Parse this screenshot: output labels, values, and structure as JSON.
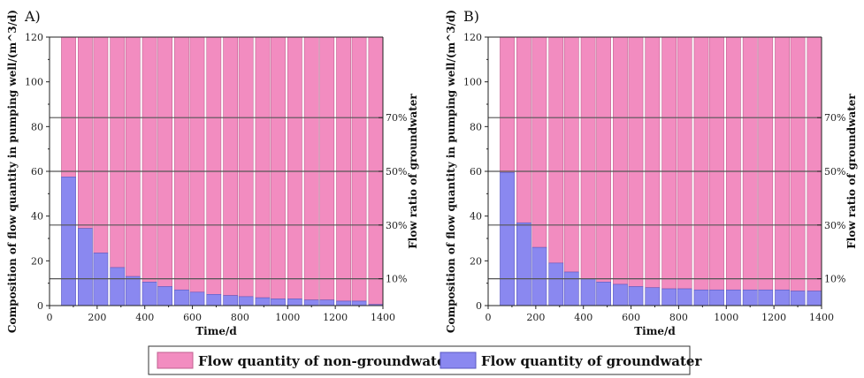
{
  "legend": {
    "items": [
      {
        "label": "Flow quantity of non-groundwater",
        "color": "#f28cc0"
      },
      {
        "label": "Flow quantity of groundwater",
        "color": "#8a88f0"
      }
    ]
  },
  "colors": {
    "non_groundwater": "#f28cc0",
    "groundwater": "#8a88f0",
    "ratio_line": "#555555"
  },
  "chart_data": [
    {
      "type": "bar",
      "stacked": true,
      "panel_label": "A)",
      "xlabel": "Time/d",
      "ylabel": "Composition of flow quantity in pumping well/(m^3/d)",
      "y2label": "Flow ratio of groundwater",
      "xlim": [
        0,
        1400
      ],
      "ylim": [
        0,
        120
      ],
      "xticks": [
        "0",
        "200",
        "400",
        "600",
        "800",
        "1000",
        "1200",
        "1400"
      ],
      "yticks": [
        "0",
        "20",
        "40",
        "60",
        "80",
        "100",
        "120"
      ],
      "ratio_lines": [
        {
          "label": "10%",
          "value": 12
        },
        {
          "label": "30%",
          "value": 36
        },
        {
          "label": "50%",
          "value": 60
        },
        {
          "label": "70%",
          "value": 84
        }
      ],
      "bar_width": 60,
      "x": [
        80,
        150,
        215,
        285,
        350,
        420,
        485,
        555,
        620,
        690,
        760,
        825,
        895,
        960,
        1030,
        1100,
        1165,
        1235,
        1300,
        1370
      ],
      "series": [
        {
          "name": "Flow quantity of groundwater",
          "values": [
            57.5,
            34.5,
            23.5,
            17,
            13,
            10.5,
            8.5,
            7,
            6,
            5,
            4.5,
            4,
            3.5,
            3,
            3,
            2.5,
            2.5,
            2,
            2,
            0.5
          ]
        },
        {
          "name": "Flow quantity of non-groundwater",
          "values": [
            62.5,
            85.5,
            96.5,
            103,
            107,
            109.5,
            111.5,
            113,
            114,
            115,
            115.5,
            116,
            116.5,
            117,
            117,
            117.5,
            117.5,
            118,
            118,
            119.5
          ]
        }
      ]
    },
    {
      "type": "bar",
      "stacked": true,
      "panel_label": "B)",
      "xlabel": "Time/d",
      "ylabel": "Composition of flow quantity in pumping well/(m^3/d)",
      "y2label": "Flow ratio of groundwater",
      "xlim": [
        0,
        1400
      ],
      "ylim": [
        0,
        120
      ],
      "xticks": [
        "0",
        "200",
        "400",
        "600",
        "800",
        "1000",
        "1200",
        "1400"
      ],
      "yticks": [
        "0",
        "20",
        "40",
        "60",
        "80",
        "100",
        "120"
      ],
      "ratio_lines": [
        {
          "label": "10%",
          "value": 12
        },
        {
          "label": "30%",
          "value": 36
        },
        {
          "label": "50%",
          "value": 60
        },
        {
          "label": "70%",
          "value": 84
        }
      ],
      "bar_width": 60,
      "x": [
        80,
        150,
        215,
        285,
        350,
        420,
        485,
        555,
        620,
        690,
        760,
        825,
        895,
        960,
        1030,
        1100,
        1165,
        1235,
        1300,
        1370
      ],
      "series": [
        {
          "name": "Flow quantity of groundwater",
          "values": [
            59.5,
            37,
            26,
            19,
            15,
            12,
            10.5,
            9.5,
            8.5,
            8,
            7.5,
            7.5,
            7,
            7,
            7,
            7,
            7,
            7,
            6.5,
            6.5
          ]
        },
        {
          "name": "Flow quantity of non-groundwater",
          "values": [
            60.5,
            83,
            94,
            101,
            105,
            108,
            109.5,
            110.5,
            111.5,
            112,
            112.5,
            112.5,
            113,
            113,
            113,
            113,
            113,
            113,
            113.5,
            113.5
          ]
        }
      ]
    }
  ]
}
